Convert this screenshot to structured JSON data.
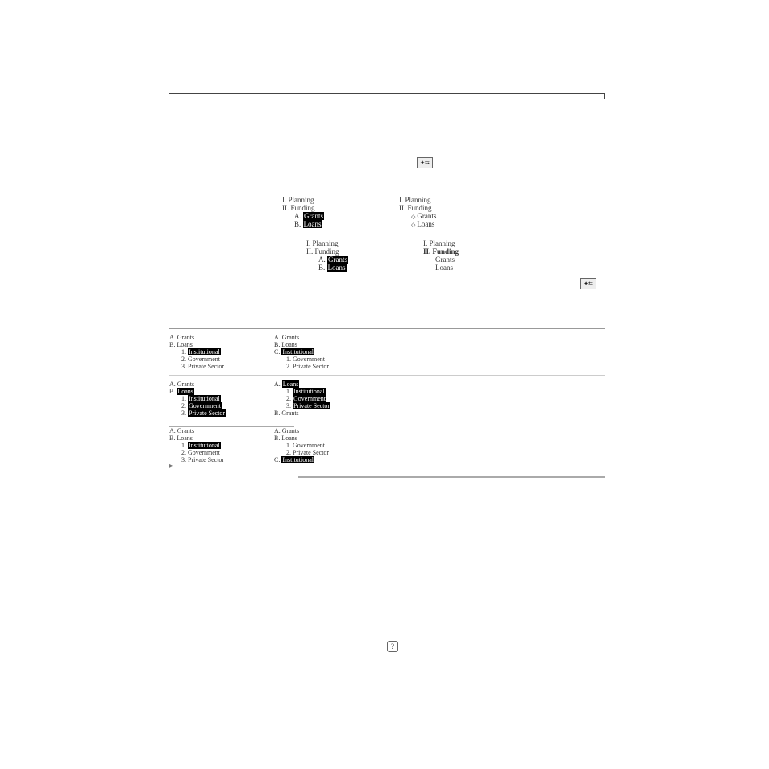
{
  "top_rule": true,
  "icons": {
    "promote_demote": "✦⇆",
    "help": "?"
  },
  "example1": {
    "left": [
      {
        "lv": 1,
        "t": "I. Planning"
      },
      {
        "lv": 1,
        "t": "II. Funding"
      },
      {
        "lv": 2,
        "pref": "A. ",
        "hl": "Grants"
      },
      {
        "lv": 2,
        "pref": "B. ",
        "hl": "Loans"
      }
    ],
    "right": [
      {
        "lv": 1,
        "t": "I. Planning"
      },
      {
        "lv": 1,
        "t": "II. Funding"
      },
      {
        "lv": 2,
        "dia": true,
        "t": "Grants"
      },
      {
        "lv": 2,
        "dia": true,
        "t": "Loans"
      }
    ]
  },
  "example2": {
    "left": [
      {
        "lv": 1,
        "t": "I. Planning"
      },
      {
        "lv": 1,
        "t": "II. Funding"
      },
      {
        "lv": 2,
        "pref": "A. ",
        "hl": "Grants"
      },
      {
        "lv": 2,
        "pref": "B. ",
        "hl": "Loans"
      }
    ],
    "right": [
      {
        "lv": 1,
        "t": "I. Planning"
      },
      {
        "lv": 1,
        "bold": true,
        "t": "II. Funding"
      },
      {
        "lv": 2,
        "t": "Grants"
      },
      {
        "lv": 2,
        "t": "Loans"
      }
    ]
  },
  "ref": [
    {
      "before": [
        {
          "lv": 1,
          "t": "A. Grants"
        },
        {
          "lv": 1,
          "t": "B. Loans"
        },
        {
          "lv": 2,
          "pref": "1. ",
          "hl": "Institutional"
        },
        {
          "lv": 2,
          "t": "2. Government"
        },
        {
          "lv": 2,
          "t": "3. Private Sector"
        }
      ],
      "after": [
        {
          "lv": 1,
          "t": "A. Grants"
        },
        {
          "lv": 1,
          "t": "B. Loans"
        },
        {
          "lv": 1,
          "pref": "C. ",
          "hl": "Institutional"
        },
        {
          "lv": 2,
          "t": "1. Government"
        },
        {
          "lv": 2,
          "t": "2. Private Sector"
        }
      ]
    },
    {
      "before": [
        {
          "lv": 1,
          "t": "A. Grants"
        },
        {
          "lv": 1,
          "pref": "B. ",
          "hl": "Loans"
        },
        {
          "lv": 2,
          "pref": "1. ",
          "hl": "Institutional"
        },
        {
          "lv": 2,
          "pref": "2. ",
          "hl": "Government"
        },
        {
          "lv": 2,
          "pref": "3. ",
          "hl": "Private Sector"
        }
      ],
      "after": [
        {
          "lv": 1,
          "pref": "A. ",
          "hl": "Loans"
        },
        {
          "lv": 2,
          "pref": "1. ",
          "hl": "Institutional"
        },
        {
          "lv": 2,
          "pref": "2. ",
          "hl": "Government"
        },
        {
          "lv": 2,
          "pref": "3. ",
          "hl": "Private Sector"
        },
        {
          "lv": 1,
          "t": "B. Grants"
        }
      ]
    },
    {
      "before": [
        {
          "lv": 1,
          "t": "A. Grants"
        },
        {
          "lv": 1,
          "t": "B. Loans"
        },
        {
          "lv": 2,
          "pref": "1. ",
          "hl": "Institutional"
        },
        {
          "lv": 2,
          "t": "2. Government"
        },
        {
          "lv": 2,
          "t": "3. Private Sector"
        }
      ],
      "after": [
        {
          "lv": 1,
          "t": "A. Grants"
        },
        {
          "lv": 1,
          "t": "B. Loans"
        },
        {
          "lv": 2,
          "t": "1. Government"
        },
        {
          "lv": 2,
          "t": "2. Private Sector"
        },
        {
          "lv": 1,
          "pref": "C. ",
          "hl": "Institutional"
        }
      ]
    }
  ]
}
